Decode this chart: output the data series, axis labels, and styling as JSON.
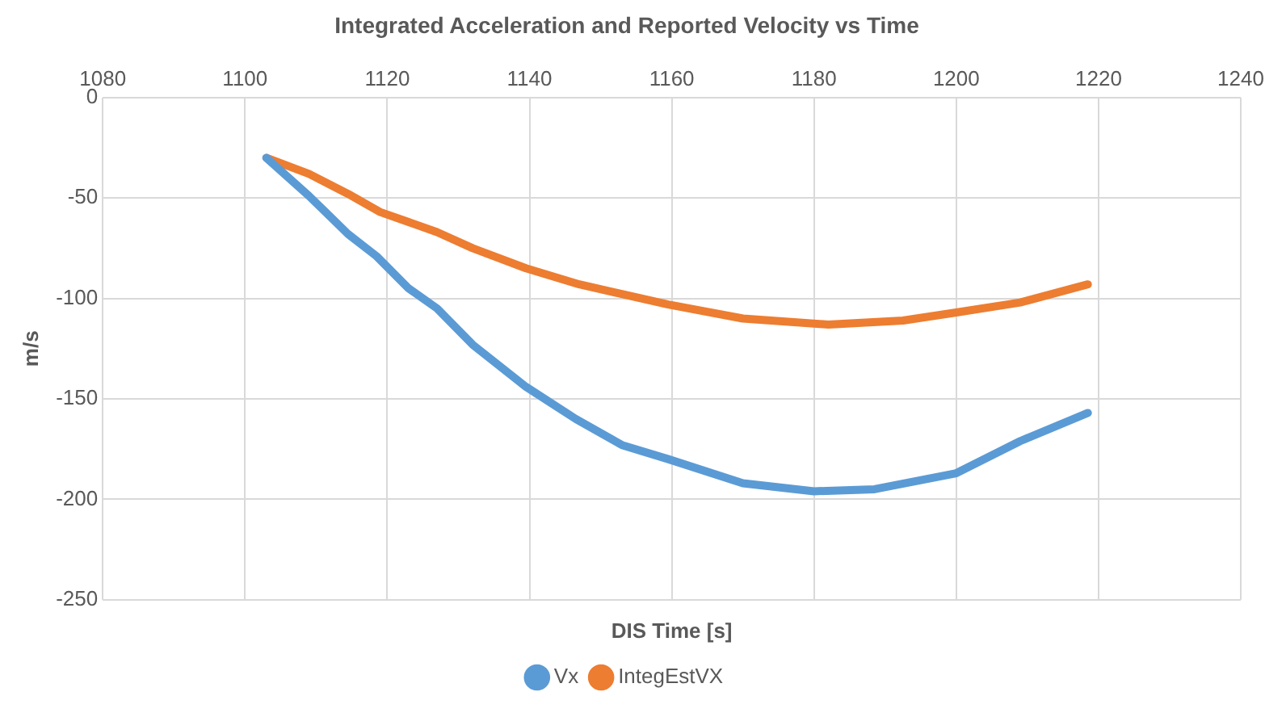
{
  "chart_data": {
    "type": "line",
    "title": "Integrated Acceleration and Reported Velocity vs Time",
    "xlabel": "DIS Time [s]",
    "ylabel": "m/s",
    "xlim": [
      1080,
      1240
    ],
    "xticks": [
      1080,
      1100,
      1120,
      1140,
      1160,
      1180,
      1200,
      1220,
      1240
    ],
    "ylim": [
      -250,
      0
    ],
    "yticks": [
      -250,
      -200,
      -150,
      -100,
      -50,
      0
    ],
    "grid": true,
    "legend": "bottom",
    "marker": "none",
    "series": [
      {
        "name": "Vx",
        "color": "#5b9bd5",
        "x": [
          1103,
          1109,
          1114.5,
          1118.5,
          1123,
          1127,
          1132,
          1139.5,
          1146.5,
          1153,
          1159.5,
          1170,
          1180,
          1188.5,
          1200,
          1209,
          1218.5
        ],
        "values": [
          -30,
          -49,
          -68,
          -79,
          -95,
          -105,
          -123,
          -144,
          -160,
          -173,
          -180,
          -192,
          -196,
          -195,
          -187,
          -171,
          -157
        ]
      },
      {
        "name": "IntegEstVX",
        "color": "#ed7d31",
        "x": [
          1103,
          1109,
          1114.5,
          1119,
          1123,
          1127,
          1132,
          1139.5,
          1147,
          1159.5,
          1170,
          1182,
          1192.5,
          1200,
          1209,
          1218.5
        ],
        "values": [
          -30,
          -38,
          -48,
          -57,
          -62,
          -67,
          -75,
          -85,
          -93,
          -103,
          -110,
          -113,
          -111,
          -107,
          -102,
          -93
        ]
      }
    ]
  }
}
